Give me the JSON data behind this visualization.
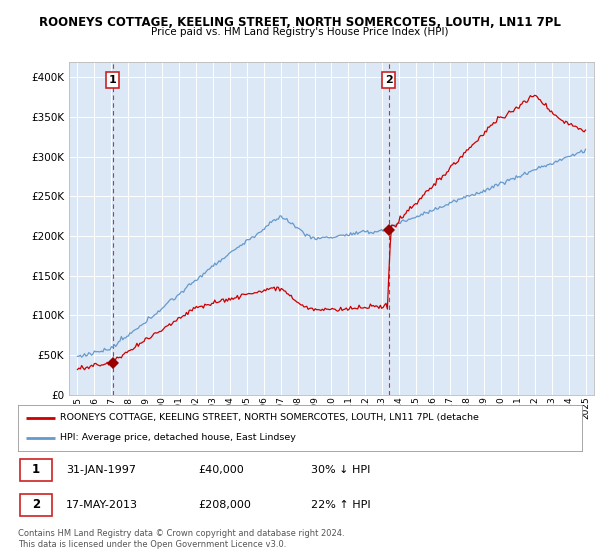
{
  "title1": "ROONEYS COTTAGE, KEELING STREET, NORTH SOMERCOTES, LOUTH, LN11 7PL",
  "title2": "Price paid vs. HM Land Registry's House Price Index (HPI)",
  "legend_line1": "ROONEYS COTTAGE, KEELING STREET, NORTH SOMERCOTES, LOUTH, LN11 7PL (detache",
  "legend_line2": "HPI: Average price, detached house, East Lindsey",
  "annotation1_date": "31-JAN-1997",
  "annotation1_price": "£40,000",
  "annotation1_hpi": "30% ↓ HPI",
  "annotation2_date": "17-MAY-2013",
  "annotation2_price": "£208,000",
  "annotation2_hpi": "22% ↑ HPI",
  "footer": "Contains HM Land Registry data © Crown copyright and database right 2024.\nThis data is licensed under the Open Government Licence v3.0.",
  "point1_x": 1997.08,
  "point1_y": 40000,
  "point2_x": 2013.38,
  "point2_y": 208000,
  "ylim": [
    0,
    420000
  ],
  "xlim": [
    1994.5,
    2025.5
  ],
  "line_color_red": "#cc0000",
  "line_color_blue": "#6699cc",
  "marker_color": "#990000",
  "vline_color": "#cc3333",
  "box_color": "#cc2222",
  "plot_bg": "#dce8f5",
  "grid_color": "#ffffff"
}
